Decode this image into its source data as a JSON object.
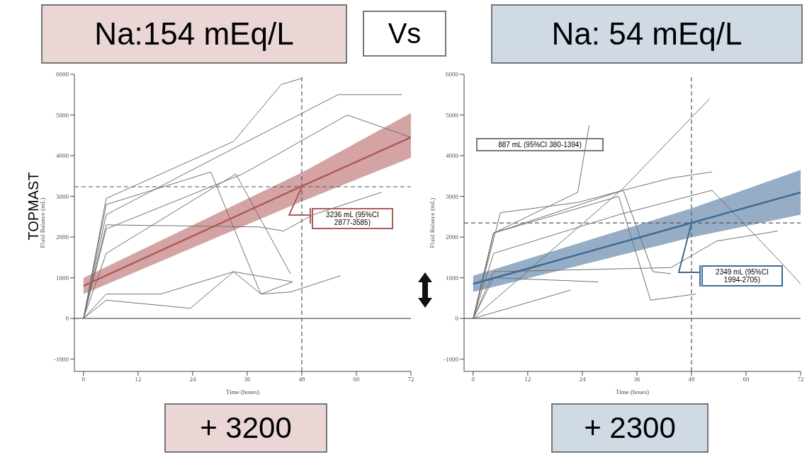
{
  "chart_data": [
    {
      "type": "line",
      "title": "Na:154 mEq/L",
      "xlabel": "Time (hours)",
      "ylabel": "Fluid Balance (mL)",
      "xlim": [
        -2,
        72
      ],
      "xticks": [
        0,
        12,
        24,
        36,
        48,
        60,
        72
      ],
      "ylim": [
        -1300,
        6000
      ],
      "yticks": [
        -1000,
        0,
        1000,
        2000,
        3000,
        4000,
        5000,
        6000
      ],
      "ref_lines": [
        {
          "axis": "x",
          "value": 48,
          "line_style": "dashed"
        },
        {
          "axis": "y",
          "value": 3236,
          "line_style": "dashed"
        },
        {
          "axis": "y",
          "value": 0,
          "line_style": "solid"
        }
      ],
      "annotations": [
        "+ 3200",
        "Vs",
        "TOPMAST",
        "3236 mL (95%CI 2877-3585)"
      ],
      "series": [
        {
          "color": "#707070",
          "x": [
            0,
            5,
            33,
            43.5,
            48
          ],
          "values": [
            0,
            2950,
            4350,
            5750,
            5900
          ]
        },
        {
          "color": "#707070",
          "x": [
            0,
            5,
            23,
            56,
            70
          ],
          "values": [
            0,
            2550,
            3600,
            5500,
            5500
          ]
        },
        {
          "color": "#707070",
          "x": [
            0,
            5,
            35,
            58,
            72
          ],
          "values": [
            0,
            2200,
            3550,
            5000,
            4450
          ]
        },
        {
          "color": "#707070",
          "x": [
            0,
            5,
            17,
            33,
            46
          ],
          "values": [
            0,
            600,
            600,
            1150,
            900
          ]
        },
        {
          "color": "#707070",
          "x": [
            0,
            5,
            23.5,
            33,
            39,
            45.5,
            56.5
          ],
          "values": [
            0,
            450,
            250,
            1150,
            600,
            650,
            1050
          ]
        },
        {
          "color": "#707070",
          "x": [
            0,
            5,
            28,
            39,
            46
          ],
          "values": [
            0,
            2800,
            3600,
            600,
            900
          ]
        },
        {
          "color": "#707070",
          "x": [
            0,
            5,
            38.5,
            44,
            50.5,
            65.5
          ],
          "values": [
            0,
            2300,
            2250,
            2150,
            2550,
            3100
          ]
        },
        {
          "color": "#707070",
          "x": [
            0,
            5,
            33.5,
            45.5
          ],
          "values": [
            0,
            1600,
            3550,
            1100
          ]
        },
        {
          "color": "#b05a5a",
          "x": [
            0,
            48,
            72
          ],
          "values": [
            800,
            3250,
            4450
          ],
          "lower": [
            600,
            2877,
            3950
          ],
          "upper": [
            1000,
            3585,
            5050
          ]
        }
      ]
    },
    {
      "type": "line",
      "title": "Na: 54 mEq/L",
      "xlabel": "Time (hours)",
      "ylabel": "Fluid Balance (mL)",
      "xlim": [
        -2,
        72
      ],
      "xticks": [
        0,
        12,
        24,
        36,
        48,
        60,
        72
      ],
      "ylim": [
        -1300,
        6000
      ],
      "yticks": [
        -1000,
        0,
        1000,
        2000,
        3000,
        4000,
        5000,
        6000
      ],
      "ref_lines": [
        {
          "axis": "x",
          "value": 48,
          "line_style": "dashed"
        },
        {
          "axis": "y",
          "value": 2349,
          "line_style": "dashed"
        },
        {
          "axis": "y",
          "value": 0,
          "line_style": "solid"
        }
      ],
      "annotations": [
        "+ 2300",
        "887 mL (95%CI 380-1394)",
        "2349 mL (95%CI 1994-2705)"
      ],
      "series": [
        {
          "color": "#707070",
          "x": [
            0,
            4.5,
            23,
            25.5
          ],
          "values": [
            0,
            2100,
            3100,
            4750
          ]
        },
        {
          "color": "#707070",
          "x": [
            0,
            33,
            52
          ],
          "values": [
            0,
            3200,
            5400
          ]
        },
        {
          "color": "#707070",
          "x": [
            0,
            6,
            23,
            33,
            43.5,
            52.5
          ],
          "values": [
            0,
            2600,
            2850,
            3150,
            3450,
            3600
          ]
        },
        {
          "color": "#707070",
          "x": [
            0,
            4.5,
            33,
            39.5,
            43.5
          ],
          "values": [
            0,
            2100,
            3150,
            1150,
            1100
          ]
        },
        {
          "color": "#707070",
          "x": [
            0,
            21.5
          ],
          "values": [
            0,
            700
          ]
        },
        {
          "color": "#707070",
          "x": [
            0,
            4.5,
            27.5
          ],
          "values": [
            0,
            1000,
            900
          ]
        },
        {
          "color": "#707070",
          "x": [
            0,
            4.5,
            32,
            39,
            49
          ],
          "values": [
            0,
            2100,
            3000,
            450,
            600
          ]
        },
        {
          "color": "#707070",
          "x": [
            0,
            4.5,
            32,
            52.5,
            67.5,
            72
          ],
          "values": [
            0,
            1600,
            2550,
            3150,
            1400,
            850
          ]
        },
        {
          "color": "#707070",
          "x": [
            0,
            4.5,
            43.5,
            53.5,
            67
          ],
          "values": [
            0,
            1150,
            1250,
            1900,
            2150
          ]
        },
        {
          "color": "#3f6b96",
          "x": [
            0,
            48,
            72
          ],
          "values": [
            850,
            2350,
            3100
          ],
          "lower": [
            650,
            1994,
            2550
          ],
          "upper": [
            1050,
            2705,
            3650
          ]
        }
      ]
    }
  ]
}
